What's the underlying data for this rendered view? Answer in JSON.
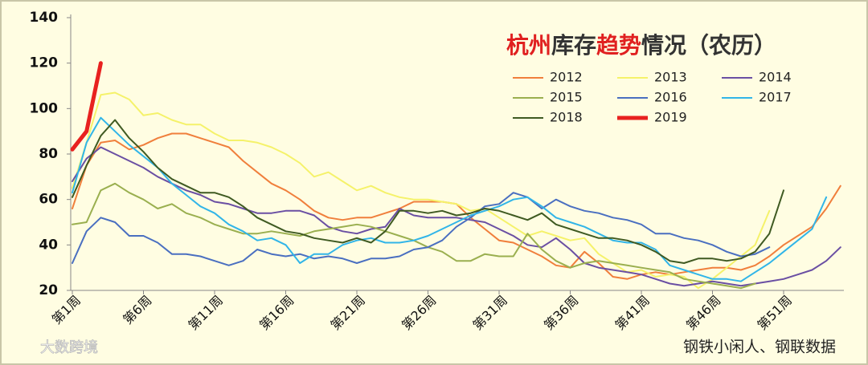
{
  "chart_data": {
    "type": "line",
    "title": [
      {
        "text": "杭州",
        "color": "#e02020"
      },
      {
        "text": "库存",
        "color": "#333333"
      },
      {
        "text": "趋势",
        "color": "#e02020"
      },
      {
        "text": "情况（农历）",
        "color": "#333333"
      }
    ],
    "source": "钢铁小闲人、钢联数据",
    "watermark": "大数跨境",
    "categories": [
      "第1周",
      null,
      null,
      null,
      null,
      "第6周",
      null,
      null,
      null,
      null,
      "第11周",
      null,
      null,
      null,
      null,
      "第16周",
      null,
      null,
      null,
      null,
      "第21周",
      null,
      null,
      null,
      null,
      "第26周",
      null,
      null,
      null,
      null,
      "第31周",
      null,
      null,
      null,
      null,
      "第36周",
      null,
      null,
      null,
      null,
      "第41周",
      null,
      null,
      null,
      null,
      "第46周",
      null,
      null,
      null,
      null,
      "第51周",
      null,
      null,
      null,
      null
    ],
    "ylim": [
      20,
      140
    ],
    "yticks": [
      20,
      40,
      60,
      80,
      100,
      120,
      140
    ],
    "series": [
      {
        "name": "2012",
        "color": "#f07f3c",
        "values": [
          56,
          75,
          85,
          86,
          82,
          84,
          87,
          89,
          89,
          87,
          85,
          83,
          77,
          72,
          67,
          64,
          60,
          55,
          52,
          51,
          52,
          52,
          54,
          56,
          59,
          59,
          59,
          58,
          52,
          47,
          42,
          41,
          38,
          35,
          31,
          30,
          37,
          32,
          26,
          25,
          27,
          28,
          27,
          28,
          29,
          30,
          30,
          29,
          31,
          35,
          40,
          44,
          48,
          56,
          66
        ]
      },
      {
        "name": "2013",
        "color": "#f5f26a",
        "values": [
          65,
          85,
          106,
          107,
          104,
          97,
          98,
          95,
          93,
          93,
          89,
          86,
          86,
          85,
          83,
          80,
          76,
          70,
          72,
          68,
          64,
          66,
          63,
          61,
          60,
          60,
          59,
          58,
          55,
          56,
          52,
          48,
          44,
          46,
          44,
          42,
          43,
          36,
          32,
          28,
          29,
          26,
          27,
          26,
          21,
          25,
          30,
          35,
          40,
          55,
          null,
          null,
          null,
          null,
          null
        ]
      },
      {
        "name": "2014",
        "color": "#6a4fa3",
        "values": [
          68,
          78,
          83,
          80,
          77,
          74,
          70,
          67,
          64,
          62,
          59,
          58,
          56,
          54,
          54,
          55,
          55,
          53,
          48,
          46,
          45,
          47,
          48,
          56,
          53,
          52,
          52,
          52,
          51,
          50,
          47,
          44,
          40,
          39,
          43,
          38,
          32,
          30,
          29,
          28,
          27,
          25,
          23,
          22,
          23,
          24,
          23,
          22,
          23,
          24,
          25,
          27,
          29,
          33,
          39
        ]
      },
      {
        "name": "2015",
        "color": "#9aaf4f",
        "values": [
          49,
          50,
          64,
          67,
          63,
          60,
          56,
          58,
          54,
          52,
          49,
          47,
          45,
          45,
          46,
          45,
          44,
          46,
          47,
          48,
          49,
          48,
          46,
          44,
          42,
          39,
          37,
          33,
          33,
          36,
          35,
          35,
          45,
          38,
          33,
          30,
          32,
          33,
          32,
          31,
          30,
          29,
          28,
          25,
          24,
          23,
          22,
          21,
          23,
          null,
          null,
          null,
          null,
          null,
          null
        ]
      },
      {
        "name": "2016",
        "color": "#4a6fc0",
        "values": [
          32,
          46,
          52,
          50,
          44,
          44,
          41,
          36,
          36,
          35,
          33,
          31,
          33,
          38,
          36,
          35,
          36,
          34,
          35,
          34,
          32,
          34,
          34,
          35,
          38,
          39,
          42,
          48,
          52,
          57,
          58,
          63,
          61,
          56,
          60,
          57,
          55,
          54,
          52,
          51,
          49,
          45,
          45,
          43,
          42,
          40,
          37,
          35,
          36,
          39,
          null,
          null,
          null,
          null,
          null
        ]
      },
      {
        "name": "2017",
        "color": "#31b5e8",
        "values": [
          63,
          85,
          96,
          90,
          84,
          79,
          74,
          67,
          62,
          57,
          54,
          49,
          46,
          42,
          43,
          40,
          32,
          36,
          36,
          40,
          42,
          43,
          41,
          41,
          42,
          44,
          47,
          50,
          53,
          55,
          57,
          60,
          61,
          57,
          52,
          50,
          48,
          45,
          42,
          41,
          41,
          38,
          31,
          29,
          27,
          25,
          25,
          24,
          28,
          32,
          37,
          42,
          47,
          61,
          null
        ]
      },
      {
        "name": "2018",
        "color": "#3f5a22",
        "values": [
          61,
          75,
          88,
          95,
          87,
          81,
          74,
          69,
          66,
          63,
          63,
          61,
          57,
          52,
          49,
          46,
          45,
          43,
          42,
          41,
          43,
          41,
          46,
          55,
          55,
          54,
          55,
          53,
          54,
          56,
          55,
          53,
          51,
          54,
          49,
          47,
          45,
          43,
          43,
          42,
          40,
          37,
          33,
          32,
          34,
          34,
          33,
          34,
          37,
          45,
          64,
          null,
          null,
          null,
          null
        ]
      },
      {
        "name": "2019",
        "color": "#e8211f",
        "width": 5,
        "values": [
          82,
          90,
          120,
          null,
          null,
          null,
          null,
          null,
          null,
          null,
          null,
          null,
          null,
          null,
          null,
          null,
          null,
          null,
          null,
          null,
          null,
          null,
          null,
          null,
          null,
          null,
          null,
          null,
          null,
          null,
          null,
          null,
          null,
          null,
          null,
          null,
          null,
          null,
          null,
          null,
          null,
          null,
          null,
          null,
          null,
          null,
          null,
          null,
          null,
          null,
          null,
          null,
          null,
          null,
          null
        ]
      }
    ]
  }
}
